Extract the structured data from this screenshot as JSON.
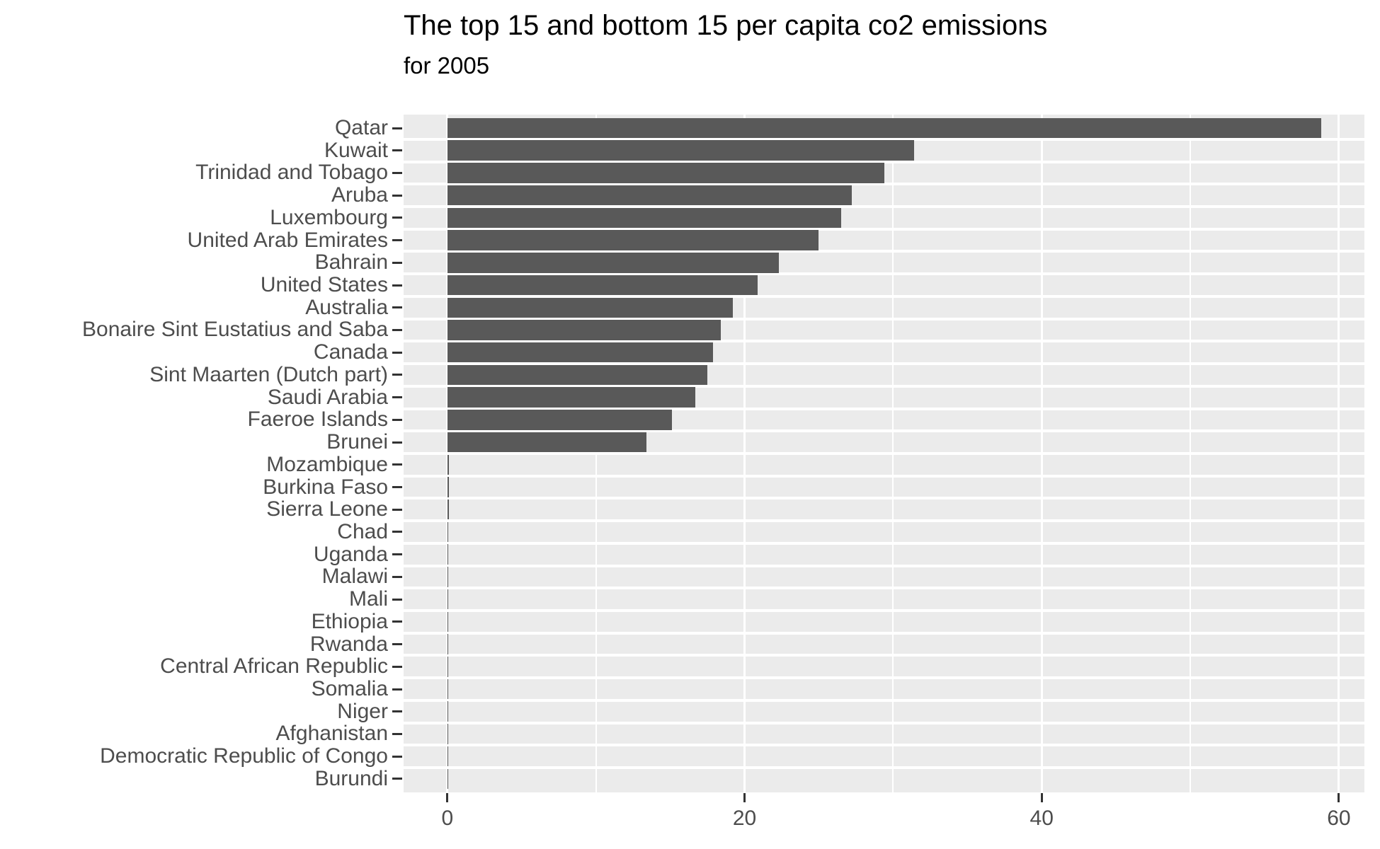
{
  "page": {
    "background": "#FFFFFF"
  },
  "chart_data": {
    "type": "bar",
    "orientation": "horizontal",
    "title": "The top 15 and bottom 15 per capita co2 emissions",
    "subtitle": "for 2005",
    "categories": [
      "Qatar",
      "Kuwait",
      "Trinidad and Tobago",
      "Aruba",
      "Luxembourg",
      "United Arab Emirates",
      "Bahrain",
      "United States",
      "Australia",
      "Bonaire Sint Eustatius and Saba",
      "Canada",
      "Sint Maarten (Dutch part)",
      "Saudi Arabia",
      "Faeroe Islands",
      "Brunei",
      "Mozambique",
      "Burkina Faso",
      "Sierra Leone",
      "Chad",
      "Uganda",
      "Malawi",
      "Mali",
      "Ethiopia",
      "Rwanda",
      "Central African Republic",
      "Somalia",
      "Niger",
      "Afghanistan",
      "Democratic Republic of Congo",
      "Burundi"
    ],
    "values": [
      58.8,
      31.4,
      29.4,
      27.2,
      26.5,
      25.0,
      22.3,
      20.9,
      19.2,
      18.4,
      17.9,
      17.5,
      16.7,
      15.1,
      13.4,
      0.09,
      0.09,
      0.08,
      0.07,
      0.07,
      0.07,
      0.06,
      0.06,
      0.06,
      0.05,
      0.05,
      0.05,
      0.04,
      0.03,
      0.03
    ],
    "xlabel": "",
    "ylabel": "",
    "x_tick_labels": [
      "0",
      "20",
      "40",
      "60"
    ],
    "x_tick_values": [
      0,
      20,
      40,
      60
    ],
    "x_minor_tick_values": [
      10,
      30,
      50
    ],
    "xlim": [
      -2.95,
      61.74
    ],
    "grid": "on",
    "legend": "none",
    "colors": {
      "bar": "#595959",
      "panel_background": "#EBEBEB",
      "gridline": "#FFFFFF",
      "axis_text": "#4D4D4D",
      "tick_mark": "#333333",
      "title_text": "#000000"
    }
  }
}
